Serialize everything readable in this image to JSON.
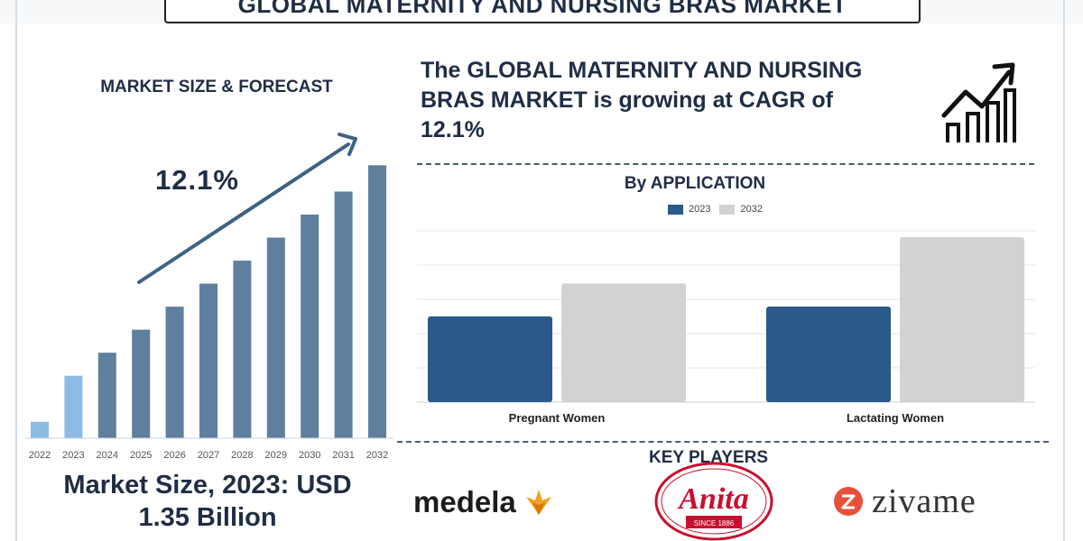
{
  "header": {
    "title": "GLOBAL MATERNITY AND NURSING BRAS MARKET"
  },
  "left_panel": {
    "title": "MARKET SIZE & FORECAST",
    "cagr_label": "12.1%",
    "market_size_line1": "Market Size, 2023: USD",
    "market_size_line2": "1.35 Billion"
  },
  "right_panel": {
    "cagr_text_line1": "The GLOBAL MATERNITY AND NURSING",
    "cagr_text_line2": "BRAS MARKET is growing at CAGR of",
    "cagr_text_line3": "12.1%",
    "application_title": "By APPLICATION",
    "key_players_title": "KEY PLAYERS"
  },
  "logos": {
    "medela": "medela",
    "anita": "Anita",
    "anita_sub": "SINCE 1886",
    "zivame": "zivame"
  },
  "colors": {
    "dark_blue": "#2b5a8a",
    "light_gray": "#d2d2d2",
    "forecast_bar": "#5f7f9e",
    "history_bar": "#8dbbe4",
    "arrow": "#3d6286"
  },
  "chart_data": [
    {
      "type": "bar",
      "categories": [
        "2022",
        "2023",
        "2024",
        "2025",
        "2026",
        "2027",
        "2028",
        "2029",
        "2030",
        "2031",
        "2032"
      ],
      "values": [
        1.0,
        3.8,
        5.2,
        6.6,
        8.0,
        9.4,
        10.8,
        12.2,
        13.6,
        15.0,
        16.6
      ],
      "highlight": [
        "history",
        "history",
        "forecast",
        "forecast",
        "forecast",
        "forecast",
        "forecast",
        "forecast",
        "forecast",
        "forecast",
        "forecast"
      ],
      "annotation": "12.1%",
      "ylim": [
        0,
        17
      ]
    },
    {
      "type": "bar",
      "categories": [
        "Pregnant Women",
        "Lactating Women"
      ],
      "series": [
        {
          "name": "2023",
          "values": [
            52,
            58
          ]
        },
        {
          "name": "2032",
          "values": [
            72,
            100
          ]
        }
      ],
      "legend_position": "top",
      "grid": true,
      "ylim": [
        0,
        105
      ]
    }
  ]
}
